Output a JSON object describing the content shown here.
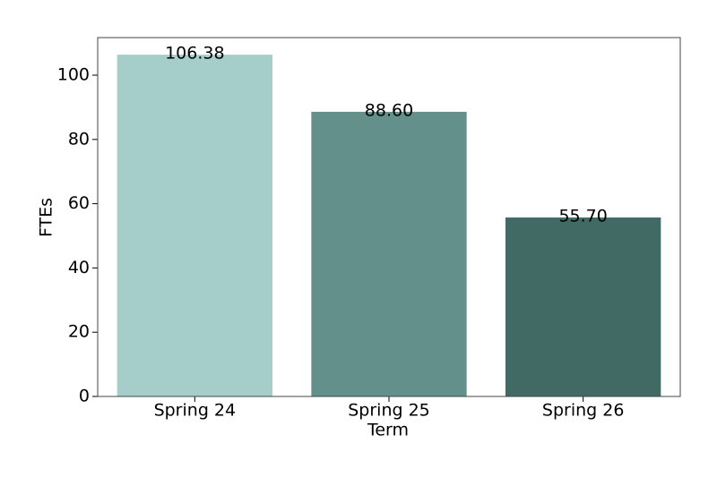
{
  "chart_data": {
    "type": "bar",
    "categories": [
      "Spring 24",
      "Spring 25",
      "Spring 26"
    ],
    "values": [
      106.38,
      88.6,
      55.7
    ],
    "value_labels": [
      "106.38",
      "88.60",
      "55.70"
    ],
    "colors": [
      "#a5cdc9",
      "#64908b",
      "#426a65"
    ],
    "xlabel": "Term",
    "ylabel": "FTEs",
    "ylim": [
      0,
      111.7
    ],
    "yticks": [
      0,
      20,
      40,
      60,
      80,
      100
    ],
    "grid": false
  }
}
